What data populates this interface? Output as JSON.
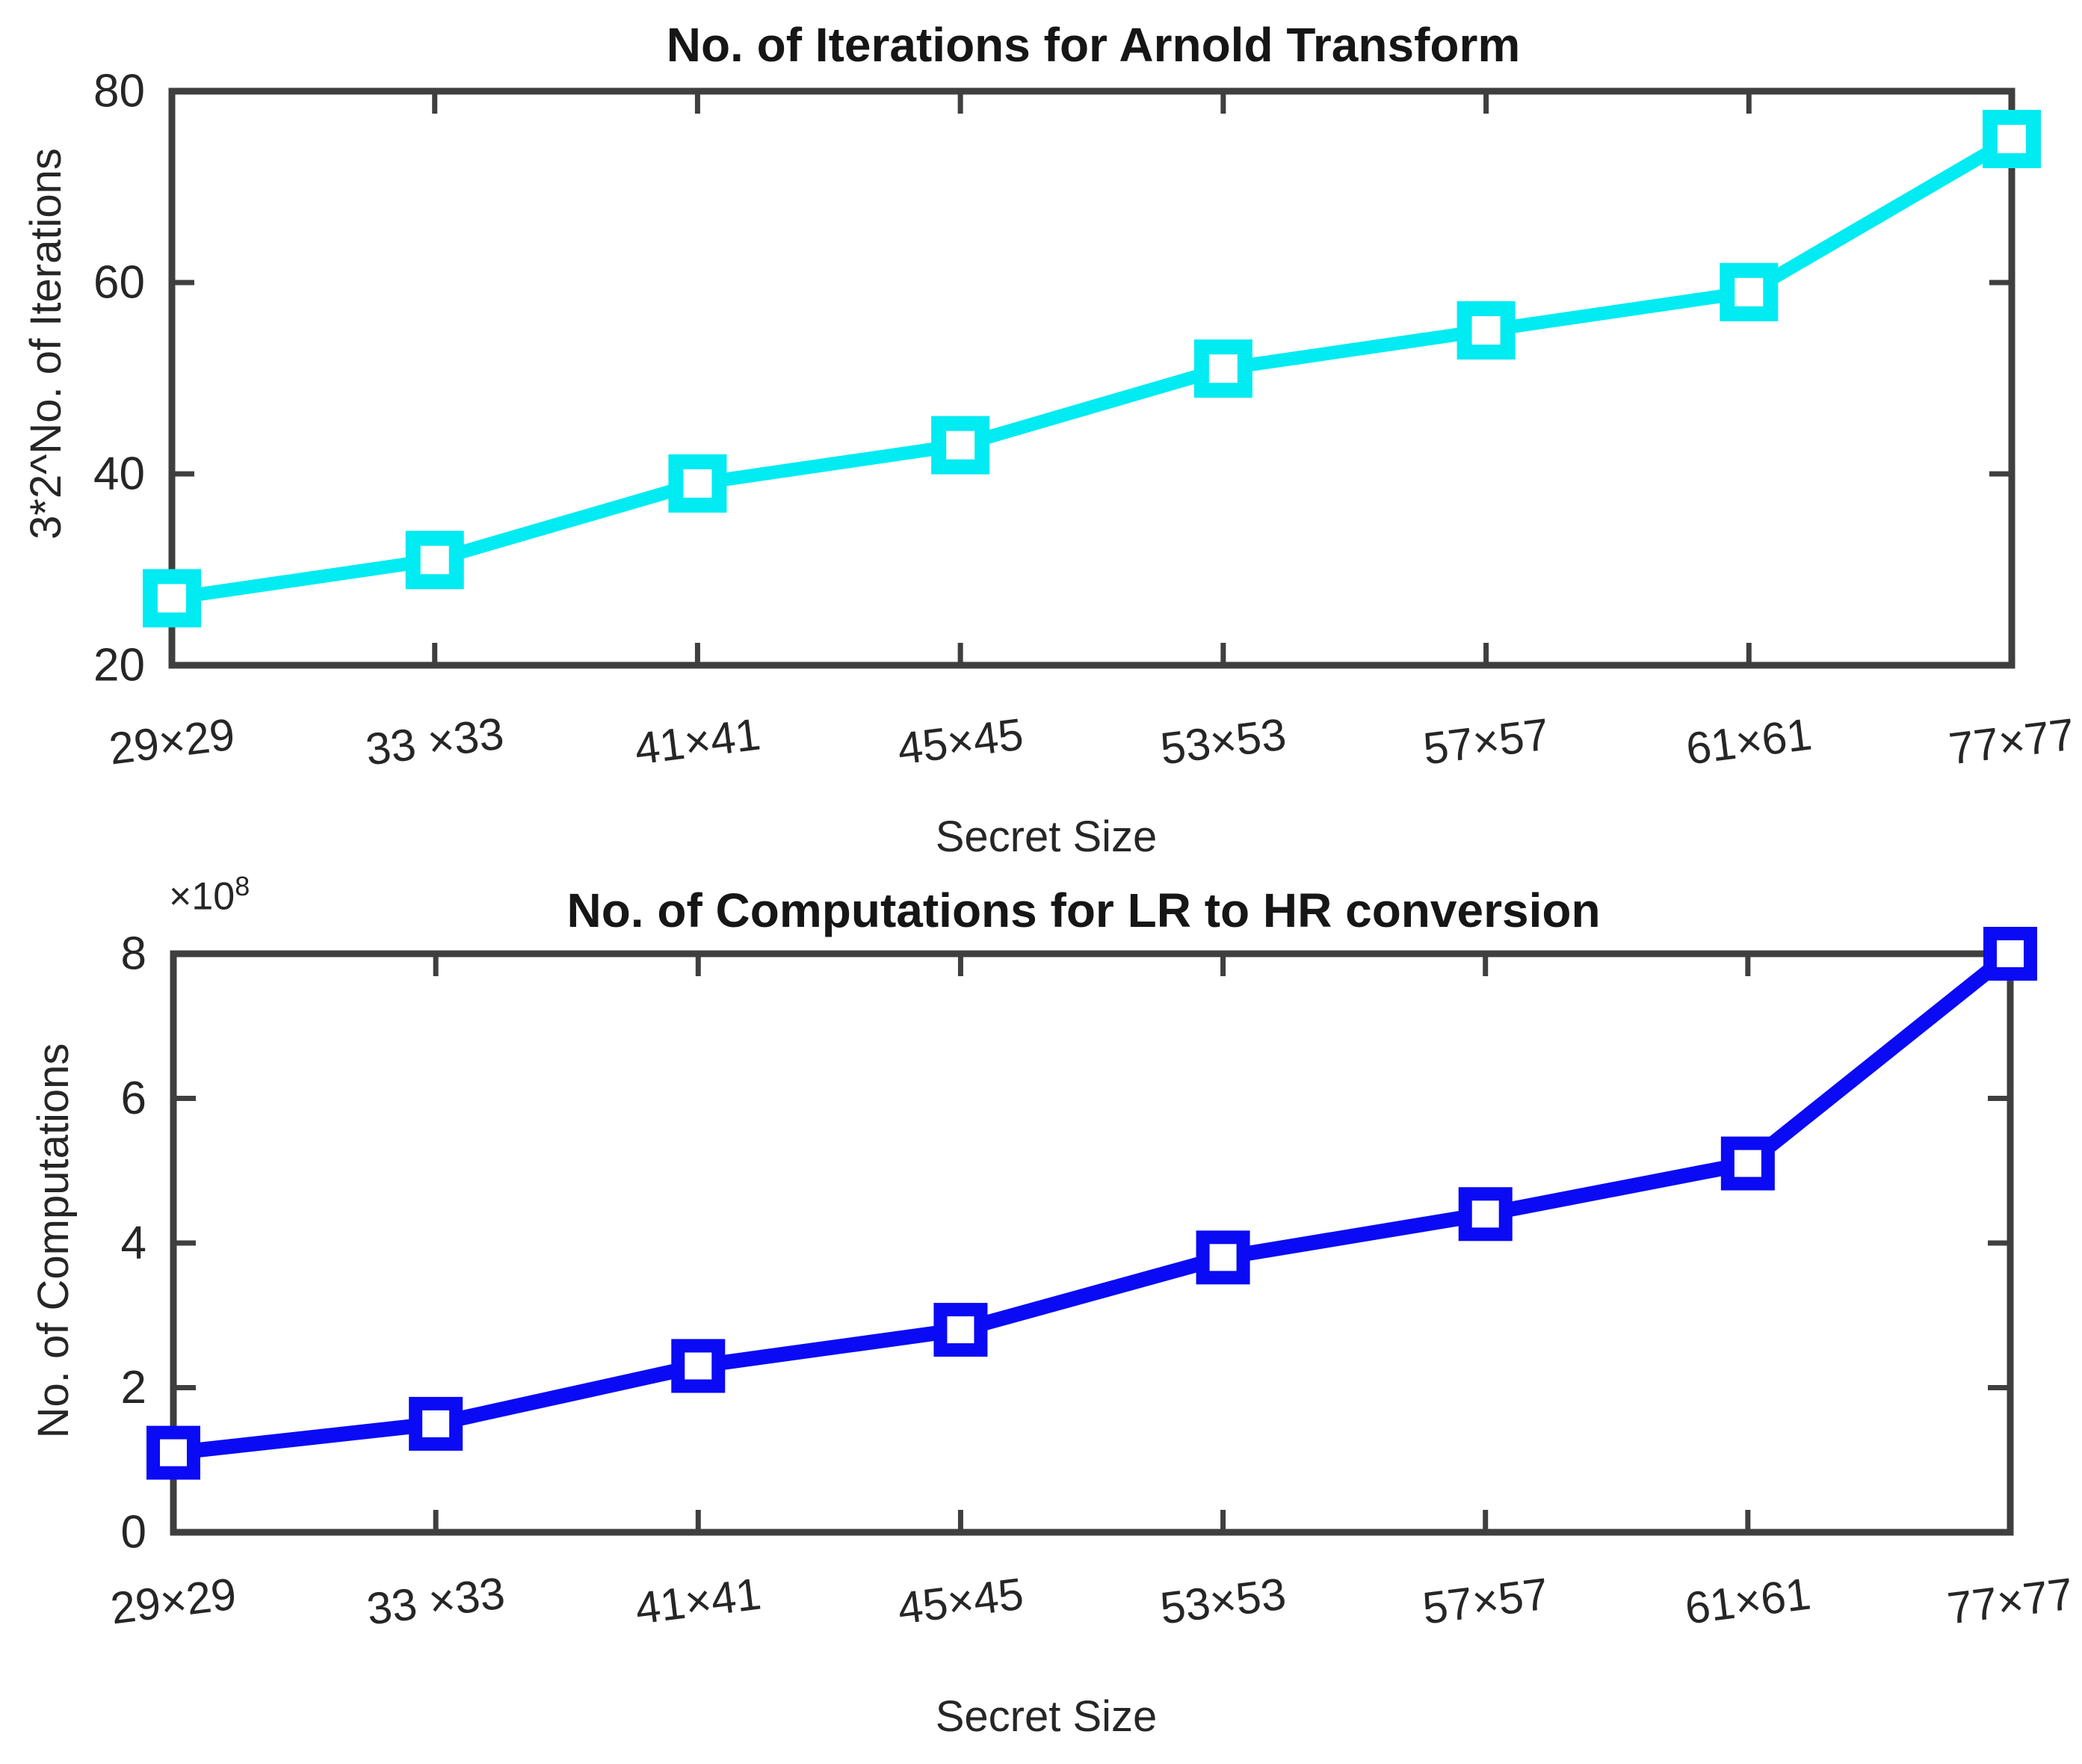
{
  "figure": {
    "background": "#ffffff",
    "axis_color": "#3f3f3f",
    "tick_label_color": "#262626"
  },
  "chart_data": [
    {
      "type": "line",
      "title": "No. of Iterations for Arnold Transform",
      "xlabel": "Secret Size",
      "ylabel": "3*2^No. of Iterations",
      "categories": [
        "29×29",
        "33 ×33",
        "41×41",
        "45×45",
        "53×53",
        "57×57",
        "61×61",
        "77×77"
      ],
      "values": [
        27,
        31,
        39,
        43,
        51,
        55,
        59,
        75
      ],
      "ylim": [
        20,
        80
      ],
      "yticks": [
        20,
        40,
        60,
        80
      ],
      "grid": false,
      "legend": "none",
      "line_color": "#00ebf2",
      "marker": "open-square",
      "marker_fill": "#ffffff"
    },
    {
      "type": "line",
      "title": "No. of Computations for LR to HR conversion",
      "xlabel": "Secret Size",
      "ylabel": "No. of Computations",
      "multiplier": "×10",
      "multiplier_exp": "8",
      "unit_multiplier": "1e8",
      "categories": [
        "29×29",
        "33 ×33",
        "41×41",
        "45×45",
        "53×53",
        "57×57",
        "61×61",
        "77×77"
      ],
      "values": [
        1.1,
        1.5,
        2.3,
        2.8,
        3.8,
        4.4,
        5.1,
        8.0
      ],
      "ylim": [
        0,
        8
      ],
      "yticks": [
        0,
        2,
        4,
        6,
        8
      ],
      "grid": false,
      "legend": "none",
      "line_color": "#0a0af5",
      "marker": "open-square",
      "marker_fill": "#ffffff"
    }
  ]
}
